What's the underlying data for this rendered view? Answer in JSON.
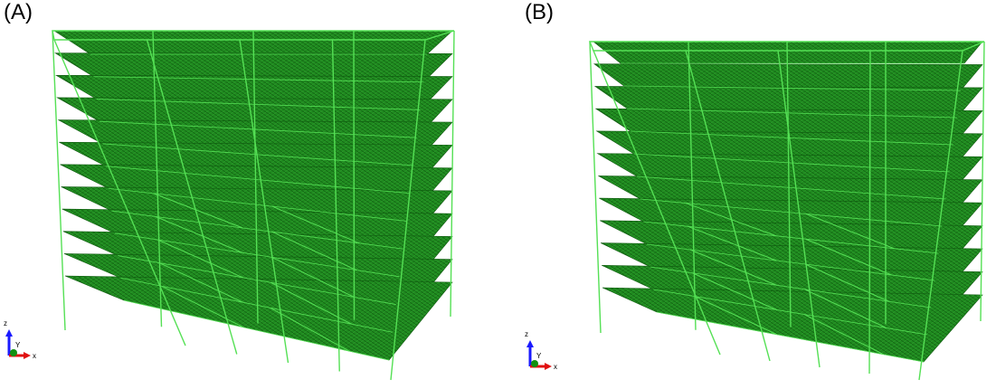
{
  "panels": [
    {
      "id": "A",
      "label": "(A)",
      "stories": 12,
      "grid_columns": 16,
      "axis_labels": {
        "z": "z",
        "y": "Y",
        "x": "x"
      }
    },
    {
      "id": "B",
      "label": "(B)",
      "stories": 12,
      "grid_columns": 16,
      "axis_labels": {
        "z": "z",
        "y": "Y",
        "x": "x"
      }
    }
  ],
  "colors": {
    "slab_fill": "#1f8a1f",
    "slab_dark": "#0f5a0f",
    "frame": "#55e055",
    "axis_z": "#1a1aff",
    "axis_x": "#e01010",
    "axis_y": "#109010"
  }
}
